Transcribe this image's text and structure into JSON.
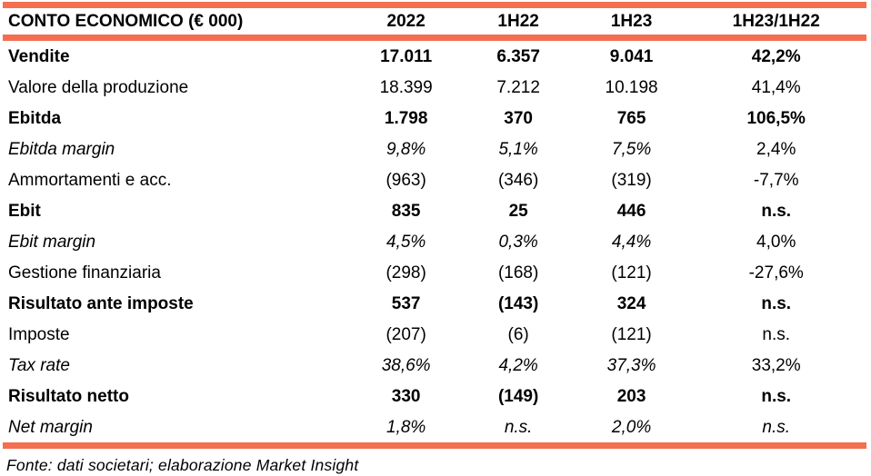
{
  "accent_color": "#F46F50",
  "table": {
    "header": {
      "label": "CONTO ECONOMICO (€ 000)",
      "columns": [
        "2022",
        "1H22",
        "1H23",
        "1H23/1H22"
      ]
    },
    "rows": [
      {
        "label": "Vendite",
        "style": "bold",
        "values": [
          "17.011",
          "6.357",
          "9.041",
          "42,2%"
        ]
      },
      {
        "label": "Valore della produzione",
        "style": "regular",
        "values": [
          "18.399",
          "7.212",
          "10.198",
          "41,4%"
        ]
      },
      {
        "label": "Ebitda",
        "style": "bold",
        "values": [
          "1.798",
          "370",
          "765",
          "106,5%"
        ]
      },
      {
        "label": "Ebitda margin",
        "style": "italic",
        "last_upright": true,
        "values": [
          "9,8%",
          "5,1%",
          "7,5%",
          "2,4%"
        ]
      },
      {
        "label": "Ammortamenti e acc.",
        "style": "regular",
        "values": [
          "(963)",
          "(346)",
          "(319)",
          "-7,7%"
        ]
      },
      {
        "label": "Ebit",
        "style": "bold",
        "values": [
          "835",
          "25",
          "446",
          "n.s."
        ]
      },
      {
        "label": "Ebit margin",
        "style": "italic",
        "last_upright": true,
        "values": [
          "4,5%",
          "0,3%",
          "4,4%",
          "4,0%"
        ]
      },
      {
        "label": "Gestione finanziaria",
        "style": "regular",
        "values": [
          "(298)",
          "(168)",
          "(121)",
          "-27,6%"
        ]
      },
      {
        "label": "Risultato ante imposte",
        "style": "bold",
        "values": [
          "537",
          "(143)",
          "324",
          "n.s."
        ]
      },
      {
        "label": "Imposte",
        "style": "regular",
        "values": [
          "(207)",
          "(6)",
          "(121)",
          "n.s."
        ]
      },
      {
        "label": "Tax rate",
        "style": "italic",
        "last_upright": true,
        "values": [
          "38,6%",
          "4,2%",
          "37,3%",
          "33,2%"
        ]
      },
      {
        "label": "Risultato netto",
        "style": "bold",
        "values": [
          "330",
          "(149)",
          "203",
          "n.s."
        ]
      },
      {
        "label": "Net margin",
        "style": "italic",
        "last_upright": false,
        "values": [
          "1,8%",
          "n.s.",
          "2,0%",
          "n.s."
        ]
      }
    ],
    "footer_note": "Fonte: dati societari; elaborazione Market Insight"
  }
}
